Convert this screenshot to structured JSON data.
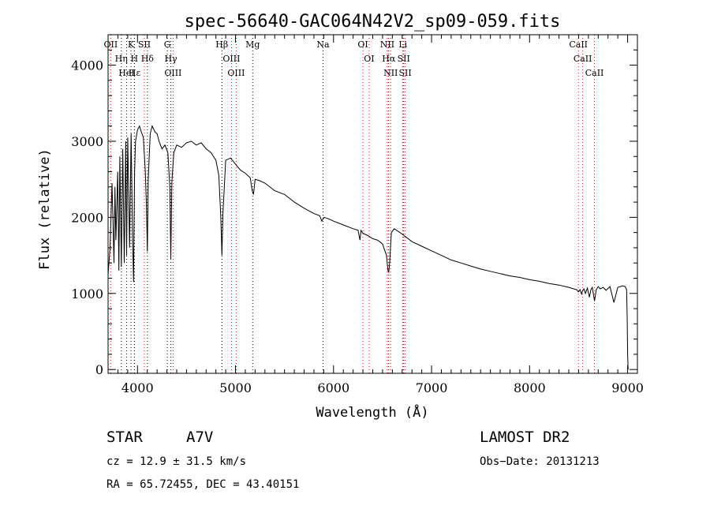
{
  "chart_data": {
    "type": "line",
    "title": "spec-56640-GAC064N42V2_sp09-059.fits",
    "xlabel": "Wavelength (Å)",
    "ylabel": "Flux (relative)",
    "xlim": [
      3700,
      9100
    ],
    "ylim": [
      -50,
      4400
    ],
    "x_ticks": [
      4000,
      5000,
      6000,
      7000,
      8000,
      9000
    ],
    "y_ticks": [
      0,
      1000,
      2000,
      3000,
      4000
    ],
    "grid": false,
    "series": [
      {
        "color": "#000000",
        "x": [
          3700,
          3720,
          3740,
          3760,
          3770,
          3780,
          3798,
          3810,
          3820,
          3835,
          3850,
          3865,
          3880,
          3889,
          3900,
          3920,
          3935,
          3950,
          3960,
          3970,
          3980,
          4000,
          4020,
          4040,
          4060,
          4080,
          4090,
          4101,
          4110,
          4130,
          4150,
          4180,
          4200,
          4220,
          4250,
          4280,
          4310,
          4330,
          4340,
          4350,
          4370,
          4400,
          4450,
          4500,
          4550,
          4600,
          4650,
          4700,
          4750,
          4800,
          4830,
          4850,
          4861,
          4872,
          4900,
          4950,
          5000,
          5050,
          5100,
          5150,
          5170,
          5183,
          5200,
          5250,
          5300,
          5400,
          5500,
          5600,
          5700,
          5800,
          5860,
          5880,
          5893,
          5905,
          5950,
          6000,
          6100,
          6200,
          6250,
          6270,
          6280,
          6300,
          6350,
          6400,
          6450,
          6500,
          6540,
          6555,
          6563,
          6572,
          6590,
          6620,
          6700,
          6800,
          6900,
          7000,
          7100,
          7200,
          7300,
          7400,
          7500,
          7600,
          7700,
          7800,
          7900,
          8000,
          8100,
          8200,
          8300,
          8400,
          8450,
          8480,
          8498,
          8515,
          8530,
          8542,
          8555,
          8570,
          8590,
          8610,
          8625,
          8640,
          8662,
          8680,
          8700,
          8720,
          8750,
          8780,
          8820,
          8860,
          8900,
          8950,
          8975,
          8990,
          8995,
          9000,
          9005
        ],
        "y": [
          1250,
          1600,
          2450,
          1400,
          2400,
          1700,
          2600,
          1300,
          2800,
          1350,
          2900,
          1400,
          3000,
          1500,
          3050,
          1600,
          3100,
          1700,
          1150,
          2600,
          3000,
          3150,
          3200,
          3120,
          3050,
          2600,
          2200,
          1550,
          2500,
          3100,
          3200,
          3120,
          3100,
          3000,
          2900,
          2950,
          2850,
          2400,
          1450,
          2450,
          2850,
          2950,
          2920,
          2980,
          3000,
          2950,
          2980,
          2900,
          2850,
          2750,
          2550,
          2000,
          1500,
          2050,
          2750,
          2780,
          2700,
          2620,
          2580,
          2520,
          2350,
          2300,
          2500,
          2480,
          2450,
          2350,
          2300,
          2200,
          2120,
          2050,
          2020,
          1950,
          1980,
          2000,
          1980,
          1950,
          1900,
          1850,
          1830,
          1700,
          1830,
          1790,
          1760,
          1720,
          1700,
          1650,
          1500,
          1300,
          1280,
          1400,
          1800,
          1850,
          1780,
          1680,
          1620,
          1560,
          1500,
          1440,
          1400,
          1360,
          1320,
          1290,
          1260,
          1230,
          1210,
          1180,
          1160,
          1130,
          1110,
          1080,
          1060,
          1050,
          1020,
          1050,
          990,
          1040,
          1060,
          1000,
          1070,
          950,
          1050,
          1080,
          900,
          1050,
          1090,
          1060,
          1080,
          1040,
          1090,
          880,
          1080,
          1100,
          1090,
          1050,
          700,
          200,
          0
        ]
      }
    ],
    "lines": [
      {
        "label": "Hδ",
        "x": 4101,
        "color": "#000000"
      },
      {
        "label": "K",
        "x": 3934,
        "color": "#000000"
      },
      {
        "label": "Hε",
        "x": 3970,
        "color": "#000000"
      },
      {
        "label": "OII",
        "x": 3727,
        "color": "#ff0000"
      },
      {
        "label": "Hη",
        "x": 3835,
        "color": "#000000"
      },
      {
        "label": "HeI",
        "x": 3889,
        "color": "#000000"
      },
      {
        "label": "SII",
        "x": 4070,
        "color": "#ff0000"
      },
      {
        "label": "H",
        "x": 3968,
        "color": "#000000"
      },
      {
        "label": "OIII",
        "x": 4363,
        "color": "#ff0000"
      },
      {
        "label": "Hγ",
        "x": 4340,
        "color": "#000000"
      },
      {
        "label": "G",
        "x": 4305,
        "color": "#000000"
      },
      {
        "label": "Hβ",
        "x": 4861,
        "color": "#000000"
      },
      {
        "label": "OIII",
        "x": 4959,
        "color": "#ff0000"
      },
      {
        "label": "OIII",
        "x": 5007,
        "color": "#ff0000"
      },
      {
        "label": "Mg",
        "x": 5175,
        "color": "#000000"
      },
      {
        "label": "Na",
        "x": 5893,
        "color": "#000000"
      },
      {
        "label": "OI",
        "x": 6300,
        "color": "#ff0000"
      },
      {
        "label": "OI",
        "x": 6363,
        "color": "#ff0000"
      },
      {
        "label": "Hα",
        "x": 6563,
        "color": "#000000"
      },
      {
        "label": "NII",
        "x": 6548,
        "color": "#ff0000"
      },
      {
        "label": "NII",
        "x": 6583,
        "color": "#ff0000"
      },
      {
        "label": "SII",
        "x": 6716,
        "color": "#ff0000"
      },
      {
        "label": "SII",
        "x": 6731,
        "color": "#ff0000"
      },
      {
        "label": "Li",
        "x": 6708,
        "color": "#000000"
      },
      {
        "label": "CaII",
        "x": 8498,
        "color": "#ff0000"
      },
      {
        "label": "CaII",
        "x": 8542,
        "color": "#ff0000"
      },
      {
        "label": "CaII",
        "x": 8662,
        "color": "#ff0000"
      }
    ]
  },
  "info": {
    "object_class": "STAR",
    "subclass": "A7V",
    "survey": "LAMOST DR2",
    "cz": "cz = 12.9 ± 31.5 km/s",
    "obs_date": "Obs−Date: 20131213",
    "coords": "RA =  65.72455, DEC =  43.40151"
  }
}
